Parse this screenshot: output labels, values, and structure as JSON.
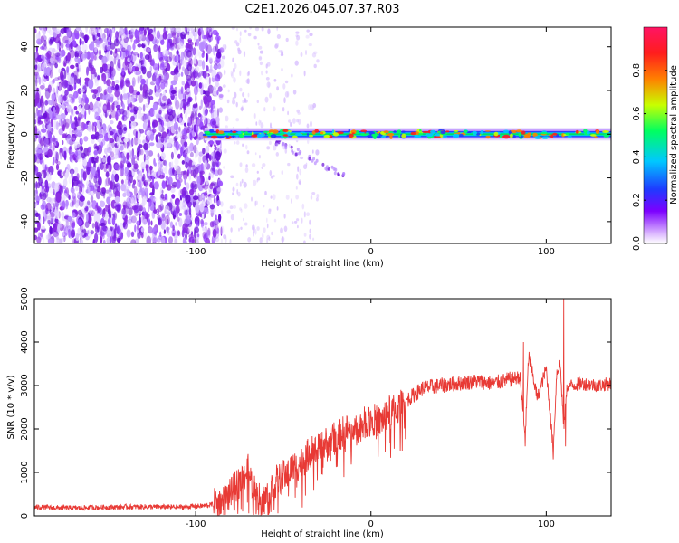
{
  "title": "C2E1.2026.045.07.37.R03",
  "colors": {
    "background": "#ffffff",
    "line": "#e83a35",
    "axis": "#000000",
    "noise": "#7a1ee6"
  },
  "chart_data": [
    {
      "type": "heatmap",
      "title": "C2E1.2026.045.07.37.R03",
      "xlabel": "Height of straight line (km)",
      "ylabel": "Frequency (Hz)",
      "xlim": [
        -192,
        137
      ],
      "ylim": [
        -50,
        49
      ],
      "xticks": [
        -100,
        0,
        100
      ],
      "yticks": [
        -40,
        -20,
        0,
        20,
        40
      ],
      "xtick_labels": [
        "-100",
        "0",
        "100"
      ],
      "ytick_labels": [
        "-40",
        "-20",
        "0",
        "20",
        "40"
      ],
      "colorbar": {
        "label": "Normalized spectral amplitude",
        "range": [
          0,
          1
        ],
        "ticks": [
          0.0,
          0.2,
          0.4,
          0.6,
          0.8
        ],
        "tick_labels": [
          "0.0",
          "0.2",
          "0.4",
          "0.6",
          "0.8"
        ],
        "colormap": [
          "#ffffff",
          "#7c00ff",
          "#1f3aff",
          "#00c8ff",
          "#00ff60",
          "#c8ff00",
          "#ff8000",
          "#ff1d1d",
          "#ff1464"
        ]
      },
      "description_points": {
        "noise_region_x": [
          -192,
          -85
        ],
        "signal_band_center_hz": 0,
        "signal_band_start_km": -95
      }
    },
    {
      "type": "line",
      "xlabel": "Height of straight line (km)",
      "ylabel": "SNR (10 * v/v)",
      "xlim": [
        -192,
        137
      ],
      "ylim": [
        0,
        5000
      ],
      "xticks": [
        -100,
        0,
        100
      ],
      "yticks": [
        0,
        1000,
        2000,
        3000,
        4000,
        5000
      ],
      "xtick_labels": [
        "-100",
        "0",
        "100"
      ],
      "ytick_labels": [
        "0",
        "1000",
        "2000",
        "3000",
        "4000",
        "5000"
      ],
      "series": [
        {
          "name": "SNR",
          "x": [
            -192,
            -170,
            -150,
            -130,
            -110,
            -95,
            -85,
            -80,
            -75,
            -70,
            -66,
            -62,
            -58,
            -54,
            -50,
            -45,
            -40,
            -35,
            -30,
            -25,
            -20,
            -15,
            -10,
            -5,
            0,
            5,
            10,
            15,
            20,
            25,
            30,
            40,
            50,
            60,
            70,
            80,
            85,
            88,
            90,
            95,
            100,
            104,
            106,
            108,
            110,
            112,
            115,
            120,
            130,
            137
          ],
          "y": [
            200,
            180,
            200,
            210,
            200,
            230,
            300,
            500,
            800,
            1050,
            500,
            300,
            550,
            800,
            900,
            1100,
            1200,
            1450,
            1500,
            1700,
            1800,
            1950,
            2000,
            2100,
            2250,
            2150,
            2400,
            2450,
            2650,
            2800,
            2950,
            3000,
            3050,
            3100,
            3050,
            3150,
            3200,
            1800,
            3700,
            2700,
            3400,
            1500,
            3300,
            3500,
            2000,
            3000,
            3000,
            3050,
            3000,
            3050
          ]
        }
      ]
    }
  ]
}
